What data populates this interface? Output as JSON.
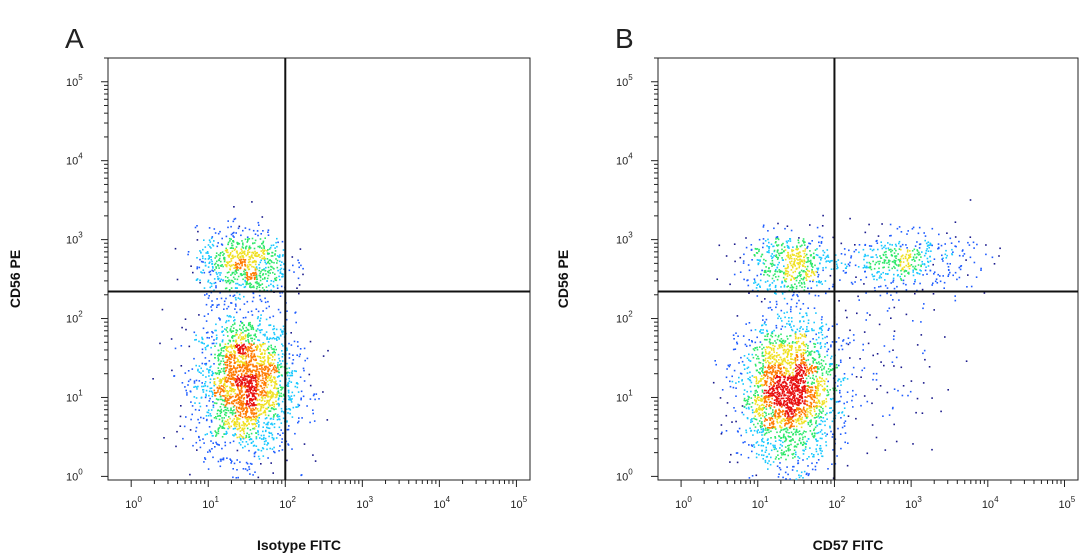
{
  "chart_data": [
    {
      "type": "scatter",
      "panel_label": "A",
      "xlabel": "Isotype FITC",
      "ylabel": "CD56 PE",
      "x_scale": "log",
      "y_scale": "log",
      "xlim": [
        0.5,
        150000
      ],
      "ylim": [
        0.9,
        200000
      ],
      "x_ticks": [
        {
          "base": "10",
          "exp": "0",
          "value": 1
        },
        {
          "base": "10",
          "exp": "1",
          "value": 10
        },
        {
          "base": "10",
          "exp": "2",
          "value": 100
        },
        {
          "base": "10",
          "exp": "3",
          "value": 1000
        },
        {
          "base": "10",
          "exp": "4",
          "value": 10000
        },
        {
          "base": "10",
          "exp": "5",
          "value": 100000
        }
      ],
      "y_ticks": [
        {
          "base": "10",
          "exp": "0",
          "value": 1
        },
        {
          "base": "10",
          "exp": "1",
          "value": 10
        },
        {
          "base": "10",
          "exp": "2",
          "value": 100
        },
        {
          "base": "10",
          "exp": "3",
          "value": 1000
        },
        {
          "base": "10",
          "exp": "4",
          "value": 10000
        },
        {
          "base": "10",
          "exp": "5",
          "value": 100000
        }
      ],
      "quadrant_gate": {
        "x": 100,
        "y": 220
      },
      "populations": [
        {
          "center": [
            30,
            15
          ],
          "spread_log": [
            0.32,
            0.45
          ],
          "count": 2200
        },
        {
          "center": [
            28,
            500
          ],
          "spread_log": [
            0.3,
            0.22
          ],
          "count": 700
        }
      ],
      "scatter_tail": [
        [
          200,
          20
        ],
        [
          350,
          40
        ],
        [
          300,
          12
        ]
      ],
      "density_colors": [
        "#1a1a8c",
        "#1f5cff",
        "#19c8ff",
        "#2ee86a",
        "#f0e020",
        "#ff7a00",
        "#e81010"
      ]
    },
    {
      "type": "scatter",
      "panel_label": "B",
      "xlabel": "CD57 FITC",
      "ylabel": "CD56 PE",
      "x_scale": "log",
      "y_scale": "log",
      "xlim": [
        0.5,
        150000
      ],
      "ylim": [
        0.9,
        200000
      ],
      "x_ticks": [
        {
          "base": "10",
          "exp": "0",
          "value": 1
        },
        {
          "base": "10",
          "exp": "1",
          "value": 10
        },
        {
          "base": "10",
          "exp": "2",
          "value": 100
        },
        {
          "base": "10",
          "exp": "3",
          "value": 1000
        },
        {
          "base": "10",
          "exp": "4",
          "value": 10000
        },
        {
          "base": "10",
          "exp": "5",
          "value": 100000
        }
      ],
      "y_ticks": [
        {
          "base": "10",
          "exp": "0",
          "value": 1
        },
        {
          "base": "10",
          "exp": "1",
          "value": 10
        },
        {
          "base": "10",
          "exp": "2",
          "value": 100
        },
        {
          "base": "10",
          "exp": "3",
          "value": 1000
        },
        {
          "base": "10",
          "exp": "4",
          "value": 10000
        },
        {
          "base": "10",
          "exp": "5",
          "value": 100000
        }
      ],
      "quadrant_gate": {
        "x": 100,
        "y": 220
      },
      "populations": [
        {
          "center": [
            25,
            12
          ],
          "spread_log": [
            0.32,
            0.45
          ],
          "count": 2200
        },
        {
          "center": [
            25,
            500
          ],
          "spread_log": [
            0.3,
            0.2
          ],
          "count": 500
        },
        {
          "center": [
            800,
            550
          ],
          "spread_log": [
            0.45,
            0.18
          ],
          "count": 450
        },
        {
          "center": [
            300,
            30
          ],
          "spread_log": [
            0.5,
            0.5
          ],
          "count": 120
        }
      ],
      "scatter_tail": [],
      "density_colors": [
        "#1a1a8c",
        "#1f5cff",
        "#19c8ff",
        "#2ee86a",
        "#f0e020",
        "#ff7a00",
        "#e81010"
      ]
    }
  ]
}
